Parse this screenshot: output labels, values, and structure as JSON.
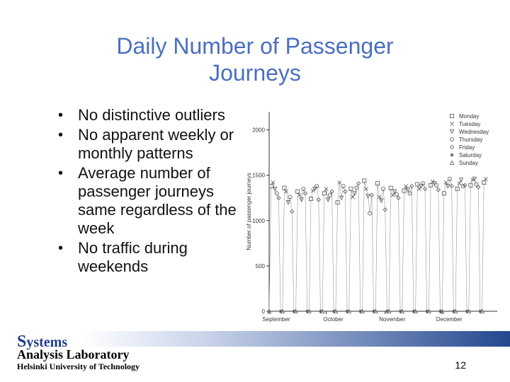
{
  "slide": {
    "title": "Daily Number of Passenger Journeys",
    "bullets": [
      "No distinctive outliers",
      "No apparent weekly or monthly patterns",
      "Average number of passenger journeys same regardless of the week",
      "No traffic during weekends"
    ],
    "footer": {
      "systems_first": "S",
      "systems_rest": "ystems",
      "lab": "Analysis Laboratory",
      "university": "Helsinki University of Technology",
      "page_number": "12"
    }
  },
  "chart_data": {
    "type": "scatter",
    "title": "",
    "xlabel": "",
    "ylabel": "Number of passenger journeys",
    "ylim": [
      0,
      2200
    ],
    "yticks": [
      0,
      500,
      1000,
      1500,
      2000
    ],
    "x_tick_labels": [
      "September",
      "October",
      "November",
      "December"
    ],
    "x_tick_days": [
      1,
      31,
      62,
      92
    ],
    "xlim": [
      1,
      121
    ],
    "legend_position": "top-right",
    "grid": false,
    "start_weekday": "Sunday",
    "weekday_order": [
      "Monday",
      "Tuesday",
      "Wednesday",
      "Thursday",
      "Friday",
      "Saturday",
      "Sunday"
    ],
    "series": [
      {
        "name": "Monday",
        "marker": "square"
      },
      {
        "name": "Tuesday",
        "marker": "x"
      },
      {
        "name": "Wednesday",
        "marker": "triangle-down"
      },
      {
        "name": "Thursday",
        "marker": "circle"
      },
      {
        "name": "Friday",
        "marker": "diamond"
      },
      {
        "name": "Saturday",
        "marker": "star"
      },
      {
        "name": "Sunday",
        "marker": "triangle-up"
      }
    ],
    "values": [
      0,
      1380,
      1420,
      1350,
      1300,
      1250,
      0,
      0,
      1360,
      1320,
      1200,
      1260,
      1100,
      0,
      0,
      1320,
      1280,
      1230,
      1350,
      1300,
      0,
      0,
      1240,
      1330,
      1350,
      1380,
      1230,
      0,
      0,
      1300,
      1350,
      1230,
      1280,
      1320,
      0,
      0,
      1200,
      1420,
      1250,
      1380,
      1320,
      0,
      0,
      1350,
      1260,
      1300,
      1360,
      1410,
      0,
      0,
      1440,
      1350,
      1270,
      1080,
      1280,
      0,
      0,
      1410,
      1260,
      1220,
      1350,
      1120,
      0,
      0,
      1360,
      1280,
      1320,
      1290,
      1250,
      0,
      0,
      1330,
      1380,
      1340,
      1300,
      1380,
      0,
      0,
      1400,
      1350,
      1380,
      1410,
      1350,
      0,
      0,
      1390,
      1430,
      1410,
      1390,
      1340,
      0,
      0,
      1300,
      1420,
      1380,
      1460,
      1380,
      0,
      0,
      1350,
      1410,
      1450,
      1380,
      1390,
      0,
      0,
      1390,
      1450,
      1460,
      1400,
      1370,
      0,
      0,
      1420,
      1460
    ]
  }
}
